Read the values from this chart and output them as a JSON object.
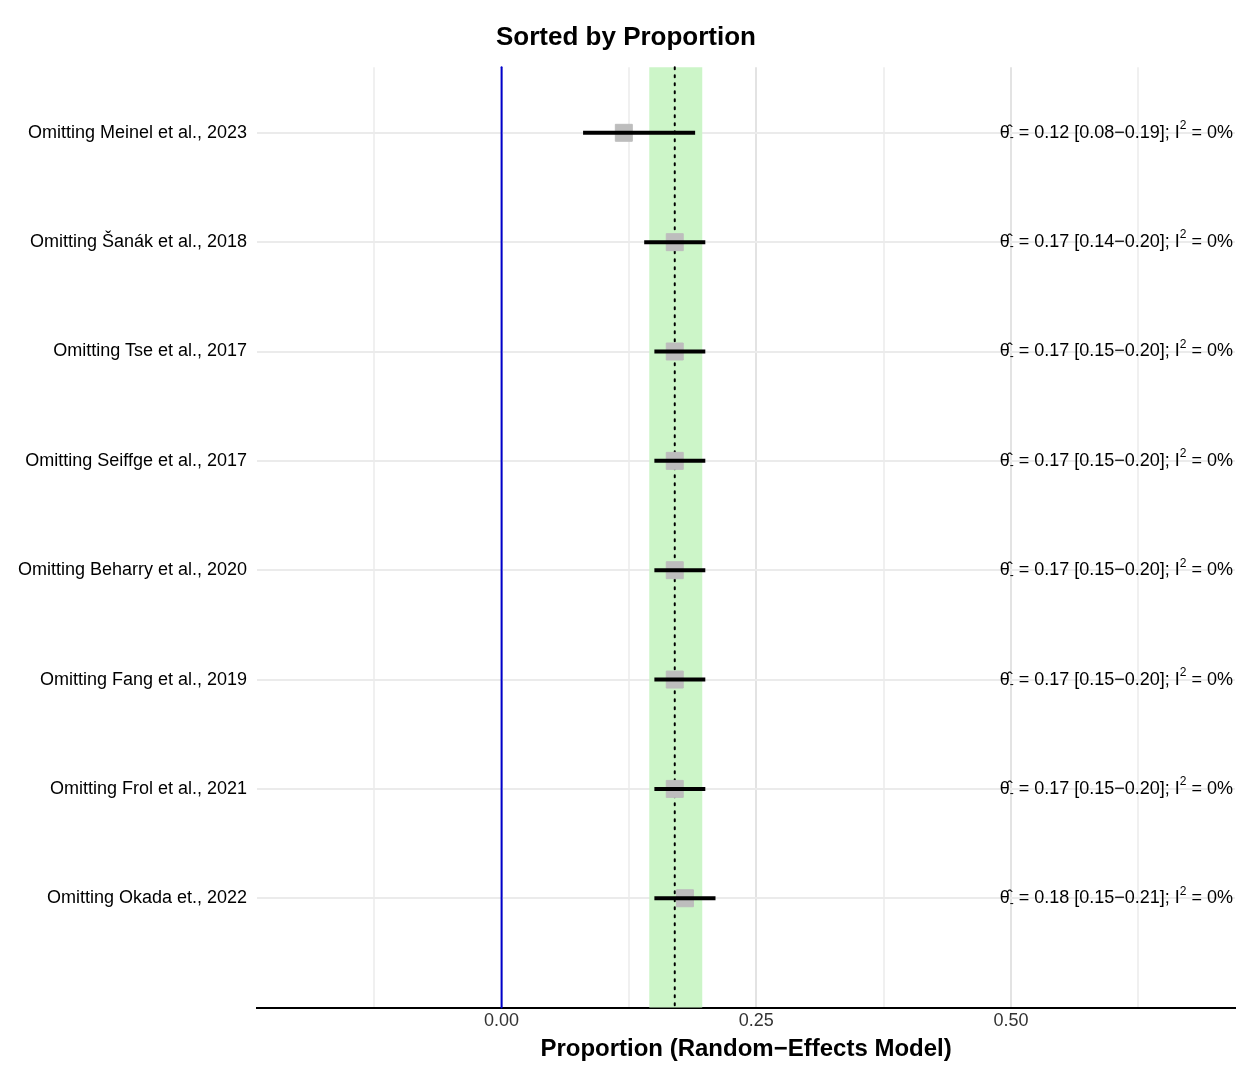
{
  "chart_data": {
    "type": "scatter",
    "title": "Sorted by Proportion",
    "xlabel": "Proportion (Random−Effects Model)",
    "orientation": "horizontal",
    "categories": [
      "Omitting Meinel et al., 2023",
      "Omitting Šanák et al., 2018",
      "Omitting Tse et al., 2017",
      "Omitting Seiffge et al., 2017",
      "Omitting Beharry et al., 2020",
      "Omitting Fang et al., 2019",
      "Omitting Frol et al., 2021",
      "Omitting Okada et., 2022"
    ],
    "values": [
      0.12,
      0.17,
      0.17,
      0.17,
      0.17,
      0.17,
      0.17,
      0.18
    ],
    "errors": [
      [
        0.08,
        0.19
      ],
      [
        0.14,
        0.2
      ],
      [
        0.15,
        0.2
      ],
      [
        0.15,
        0.2
      ],
      [
        0.15,
        0.2
      ],
      [
        0.15,
        0.2
      ],
      [
        0.15,
        0.2
      ],
      [
        0.15,
        0.21
      ]
    ],
    "annotations": [
      "θ̂$_{-}$ = 0.12 [0.08−0.19]; I$^{2}$ = 0%",
      "θ̂$_{-}$ = 0.17 [0.14−0.20]; I$^{2}$ = 0%",
      "θ̂$_{-}$ = 0.17 [0.15−0.20]; I$^{2}$ = 0%",
      "θ̂$_{-}$ = 0.17 [0.15−0.20]; I$^{2}$ = 0%",
      "θ̂$_{-}$ = 0.17 [0.15−0.20]; I$^{2}$ = 0%",
      "θ̂$_{-}$ = 0.17 [0.15−0.20]; I$^{2}$ = 0%",
      "θ̂$_{-}$ = 0.17 [0.15−0.20]; I$^{2}$ = 0%",
      "θ̂$_{-}$ = 0.18 [0.15−0.21]; I$^{2}$ = 0%"
    ],
    "color": "#bdbdbd",
    "marker": "square",
    "xlim": [
      -0.24,
      0.72
    ],
    "xticks": [
      {
        "value": -0.125,
        "label": null
      },
      {
        "value": 0,
        "label": "0.00"
      },
      {
        "value": 0.125,
        "label": null
      },
      {
        "value": 0.25,
        "label": "0.25"
      },
      {
        "value": 0.375,
        "label": null
      },
      {
        "value": 0.5,
        "label": "0.50"
      },
      {
        "value": 0.625,
        "label": null
      }
    ],
    "grid": true,
    "ref_lines": [
      {
        "axis": "x",
        "value": 0,
        "color": "#0000cc",
        "line_style": "solid"
      },
      {
        "axis": "x",
        "value": 0.17,
        "color": "#000000",
        "line_style": "dotted"
      }
    ],
    "bands": [
      {
        "axis": "x",
        "from": 0.145,
        "to": 0.197,
        "color": "#ccf5c8"
      }
    ]
  }
}
